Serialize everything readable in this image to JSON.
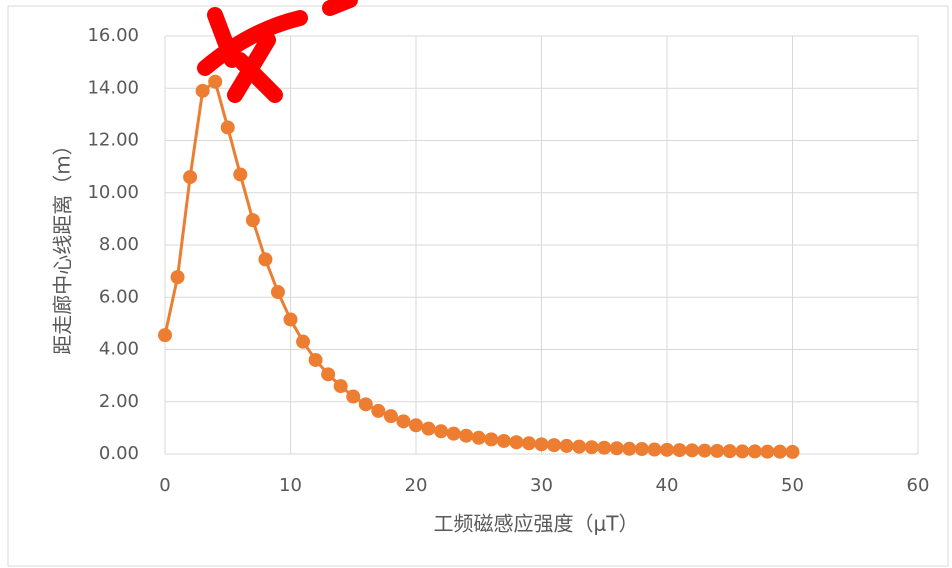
{
  "chart_data": {
    "type": "scatter-line",
    "x_label": "工频磁感应强度（μT）",
    "y_label": "距走廊中心线距离（m）",
    "series": [
      {
        "color": "#ed7d31",
        "x": [
          0,
          1,
          2,
          3,
          4,
          5,
          6,
          7,
          8,
          9,
          10,
          11,
          12,
          13,
          14,
          15,
          16,
          17,
          18,
          19,
          20,
          21,
          22,
          23,
          24,
          25,
          26,
          27,
          28,
          29,
          30,
          31,
          32,
          33,
          34,
          35,
          36,
          37,
          38,
          39,
          40,
          41,
          42,
          43,
          44,
          45,
          46,
          47,
          48,
          49,
          50
        ],
        "values": [
          4.55,
          6.77,
          10.6,
          13.9,
          14.25,
          12.5,
          10.7,
          8.95,
          7.45,
          6.2,
          5.15,
          4.3,
          3.6,
          3.05,
          2.6,
          2.2,
          1.9,
          1.65,
          1.45,
          1.25,
          1.1,
          0.97,
          0.87,
          0.78,
          0.7,
          0.62,
          0.56,
          0.5,
          0.45,
          0.41,
          0.37,
          0.34,
          0.31,
          0.28,
          0.26,
          0.24,
          0.22,
          0.2,
          0.19,
          0.17,
          0.16,
          0.15,
          0.14,
          0.13,
          0.12,
          0.11,
          0.1,
          0.1,
          0.09,
          0.09,
          0.08
        ]
      }
    ],
    "xlim": [
      0,
      60
    ],
    "xticks": [
      0,
      10,
      20,
      30,
      40,
      50,
      60
    ],
    "ylim": [
      0,
      16
    ],
    "yticks": [
      {
        "value": 0,
        "label": "0.00"
      },
      {
        "value": 2,
        "label": "2.00"
      },
      {
        "value": 4,
        "label": "4.00"
      },
      {
        "value": 6,
        "label": "6.00"
      },
      {
        "value": 8,
        "label": "8.00"
      },
      {
        "value": 10,
        "label": "10.00"
      },
      {
        "value": 12,
        "label": "12.00"
      },
      {
        "value": 14,
        "label": "14.00"
      },
      {
        "value": 16,
        "label": "16.00"
      }
    ],
    "grid": true
  }
}
